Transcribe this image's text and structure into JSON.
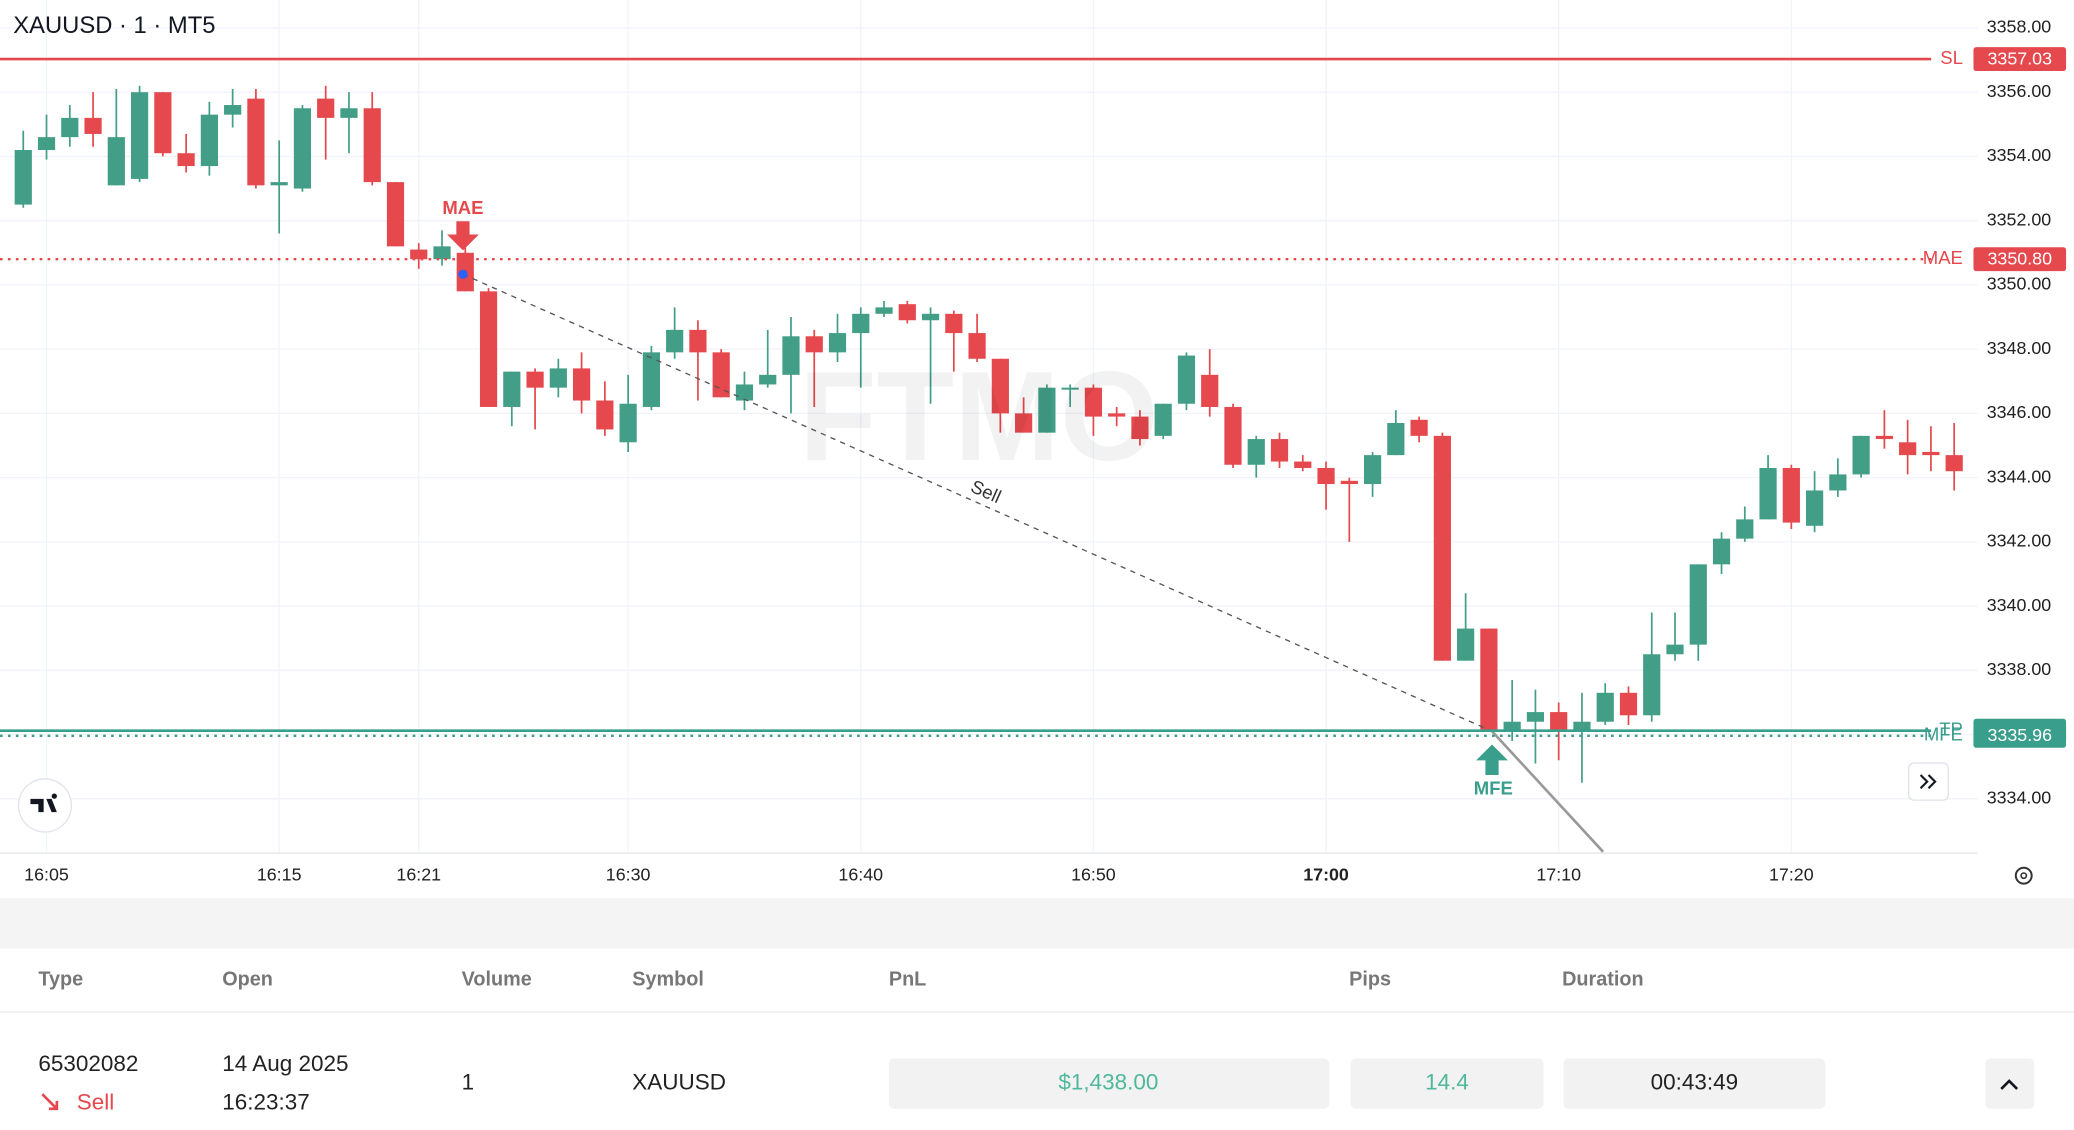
{
  "chart_data": {
    "type": "candlestick",
    "title": "XAUUSD · 1 · MT5",
    "watermark": "FTMO",
    "x": [
      "16:04",
      "16:05",
      "16:06",
      "16:07",
      "16:08",
      "16:09",
      "16:10",
      "16:11",
      "16:12",
      "16:13",
      "16:14",
      "16:15",
      "16:16",
      "16:17",
      "16:18",
      "16:19",
      "16:20",
      "16:21",
      "16:22",
      "16:23",
      "16:24",
      "16:25",
      "16:26",
      "16:27",
      "16:28",
      "16:29",
      "16:30",
      "16:31",
      "16:32",
      "16:33",
      "16:34",
      "16:35",
      "16:36",
      "16:37",
      "16:38",
      "16:39",
      "16:40",
      "16:41",
      "16:42",
      "16:43",
      "16:44",
      "16:45",
      "16:46",
      "16:47",
      "16:48",
      "16:49",
      "16:50",
      "16:51",
      "16:52",
      "16:53",
      "16:54",
      "16:55",
      "16:56",
      "16:57",
      "16:58",
      "16:59",
      "17:00",
      "17:01",
      "17:02",
      "17:03",
      "17:04",
      "17:05",
      "17:06",
      "17:07",
      "17:08",
      "17:09",
      "17:10",
      "17:11",
      "17:12",
      "17:13",
      "17:14",
      "17:15",
      "17:16",
      "17:17",
      "17:18",
      "17:19",
      "17:20",
      "17:21",
      "17:22",
      "17:23",
      "17:24",
      "17:25",
      "17:26",
      "17:27"
    ],
    "open": [
      3352.5,
      3354.2,
      3354.6,
      3355.2,
      3353.1,
      3353.3,
      3356.0,
      3354.1,
      3353.7,
      3355.3,
      3355.8,
      3353.1,
      3353.0,
      3355.8,
      3355.2,
      3355.5,
      3353.2,
      3351.1,
      3350.8,
      3351.0,
      3349.8,
      3346.2,
      3347.3,
      3346.8,
      3347.4,
      3346.4,
      3345.1,
      3346.2,
      3347.9,
      3348.6,
      3347.9,
      3346.4,
      3346.9,
      3347.2,
      3348.4,
      3347.9,
      3348.5,
      3349.1,
      3349.4,
      3348.9,
      3349.1,
      3348.5,
      3347.7,
      3346.0,
      3345.4,
      3346.8,
      3346.8,
      3346.0,
      3345.9,
      3345.3,
      3346.3,
      3347.2,
      3346.2,
      3344.4,
      3345.2,
      3344.5,
      3344.3,
      3343.9,
      3343.8,
      3344.7,
      3345.8,
      3345.3,
      3338.3,
      3339.3,
      3336.1,
      3336.4,
      3336.7,
      3336.1,
      3336.4,
      3337.3,
      3336.6,
      3338.5,
      3338.8,
      3341.3,
      3342.1,
      3342.7,
      3344.3,
      3342.5,
      3343.6,
      3344.1,
      3345.3,
      3345.1,
      3344.8,
      3344.7
    ],
    "high": [
      3354.8,
      3355.3,
      3355.6,
      3356.0,
      3356.1,
      3356.2,
      3356.0,
      3354.7,
      3355.7,
      3356.1,
      3356.1,
      3354.5,
      3355.6,
      3356.2,
      3356.0,
      3356.0,
      3353.2,
      3351.3,
      3351.7,
      3351.6,
      3349.9,
      3347.3,
      3347.4,
      3347.7,
      3347.9,
      3347.0,
      3347.2,
      3348.1,
      3349.3,
      3348.9,
      3348.0,
      3347.3,
      3348.6,
      3349.0,
      3348.6,
      3349.1,
      3349.3,
      3349.5,
      3349.5,
      3349.3,
      3349.2,
      3349.1,
      3347.7,
      3346.5,
      3346.9,
      3346.9,
      3346.9,
      3346.2,
      3346.1,
      3346.3,
      3347.9,
      3348.0,
      3346.3,
      3345.3,
      3345.4,
      3344.7,
      3344.5,
      3344.0,
      3344.8,
      3346.1,
      3345.9,
      3345.4,
      3340.4,
      3339.3,
      3337.7,
      3337.4,
      3337.0,
      3337.3,
      3337.6,
      3337.5,
      3339.8,
      3339.8,
      3341.3,
      3342.3,
      3343.1,
      3344.7,
      3344.4,
      3344.2,
      3344.6,
      3345.3,
      3346.1,
      3345.8,
      3345.6,
      3345.7
    ],
    "low": [
      3352.4,
      3353.9,
      3354.3,
      3354.3,
      3353.1,
      3353.2,
      3354.0,
      3353.5,
      3353.4,
      3354.9,
      3353.0,
      3351.6,
      3352.9,
      3353.9,
      3354.1,
      3353.1,
      3351.2,
      3350.5,
      3350.6,
      3349.8,
      3346.2,
      3345.6,
      3345.5,
      3346.5,
      3346.0,
      3345.3,
      3344.8,
      3346.1,
      3347.7,
      3346.4,
      3346.5,
      3346.1,
      3346.8,
      3346.0,
      3346.2,
      3347.6,
      3346.8,
      3349.0,
      3348.8,
      3346.3,
      3347.3,
      3347.6,
      3345.4,
      3345.4,
      3345.4,
      3346.2,
      3345.3,
      3345.6,
      3345.0,
      3345.2,
      3346.1,
      3345.9,
      3344.3,
      3344.0,
      3344.3,
      3344.2,
      3343.0,
      3342.0,
      3343.4,
      3344.7,
      3345.1,
      3338.3,
      3338.3,
      3336.1,
      3335.8,
      3335.1,
      3335.2,
      3334.5,
      3336.3,
      3336.3,
      3336.4,
      3338.3,
      3338.3,
      3341.0,
      3342.0,
      3342.7,
      3342.4,
      3342.3,
      3343.4,
      3344.0,
      3344.9,
      3344.1,
      3344.2,
      3343.6
    ],
    "close": [
      3354.2,
      3354.6,
      3355.2,
      3354.7,
      3354.6,
      3356.0,
      3354.1,
      3353.7,
      3355.3,
      3355.6,
      3353.1,
      3353.2,
      3355.5,
      3355.2,
      3355.5,
      3353.2,
      3351.2,
      3350.8,
      3351.2,
      3349.8,
      3346.2,
      3347.3,
      3346.8,
      3347.4,
      3346.4,
      3345.5,
      3346.3,
      3347.9,
      3348.6,
      3347.9,
      3346.5,
      3346.9,
      3347.2,
      3348.4,
      3347.9,
      3348.5,
      3349.1,
      3349.3,
      3348.9,
      3349.1,
      3348.5,
      3347.7,
      3346.0,
      3345.4,
      3346.8,
      3346.8,
      3345.9,
      3345.9,
      3345.2,
      3346.3,
      3347.8,
      3346.2,
      3344.4,
      3345.2,
      3344.5,
      3344.3,
      3343.8,
      3343.8,
      3344.7,
      3345.7,
      3345.3,
      3338.3,
      3339.3,
      3336.1,
      3336.4,
      3336.7,
      3336.1,
      3336.4,
      3337.3,
      3336.6,
      3338.5,
      3338.8,
      3341.3,
      3342.1,
      3342.7,
      3344.3,
      3342.6,
      3343.6,
      3344.1,
      3345.3,
      3345.2,
      3344.7,
      3344.7,
      3344.2
    ],
    "up_color": "#429e86",
    "down_color": "#e5484d",
    "xlim": [
      "16:03",
      "17:28"
    ],
    "xticks": [
      "16:05",
      "16:15",
      "16:21",
      "16:30",
      "16:40",
      "16:50",
      "17:00",
      "17:10",
      "17:20"
    ],
    "ylim": [
      3332.35,
      3358.87
    ],
    "yticks": [
      {
        "value": 3334,
        "label": "3334.00"
      },
      {
        "value": 3336,
        "label": "3336.00"
      },
      {
        "value": 3338,
        "label": "3338.00"
      },
      {
        "value": 3340,
        "label": "3340.00"
      },
      {
        "value": 3342,
        "label": "3342.00"
      },
      {
        "value": 3344,
        "label": "3344.00"
      },
      {
        "value": 3346,
        "label": "3346.00"
      },
      {
        "value": 3348,
        "label": "3348.00"
      },
      {
        "value": 3350,
        "label": "3350.00"
      },
      {
        "value": 3352,
        "label": "3352.00"
      },
      {
        "value": 3354,
        "label": "3354.00"
      },
      {
        "value": 3356,
        "label": "3356.00"
      },
      {
        "value": 3358,
        "label": "3358.00"
      }
    ],
    "grid": true,
    "levels": [
      {
        "name": "SL",
        "value": 3357.03,
        "color": "#e5484d",
        "style": "solid"
      },
      {
        "name": "MAE",
        "value": 3350.8,
        "value_label": "3350.80",
        "color": "#e5484d",
        "style": "dotted"
      },
      {
        "name": "TP",
        "value": 3336.12,
        "color": "#3a9e8c",
        "style": "solid"
      },
      {
        "name": "MFE",
        "value": 3335.96,
        "color": "#3a9e8c",
        "style": "dotted"
      }
    ],
    "annotations": {
      "mae": "MAE",
      "mfe": "MFE",
      "trade_line": "Sell"
    }
  },
  "table": {
    "headers": [
      "Type",
      "Open",
      "Volume",
      "Symbol",
      "PnL",
      "Pips",
      "Duration"
    ],
    "row": {
      "id": "65302082",
      "side": "Sell",
      "open_date": "14 Aug 2025",
      "open_time": "16:23:37",
      "volume": "1",
      "symbol": "XAUUSD",
      "pnl": "$1,438.00",
      "pips": "14.4",
      "duration": "00:43:49"
    }
  }
}
